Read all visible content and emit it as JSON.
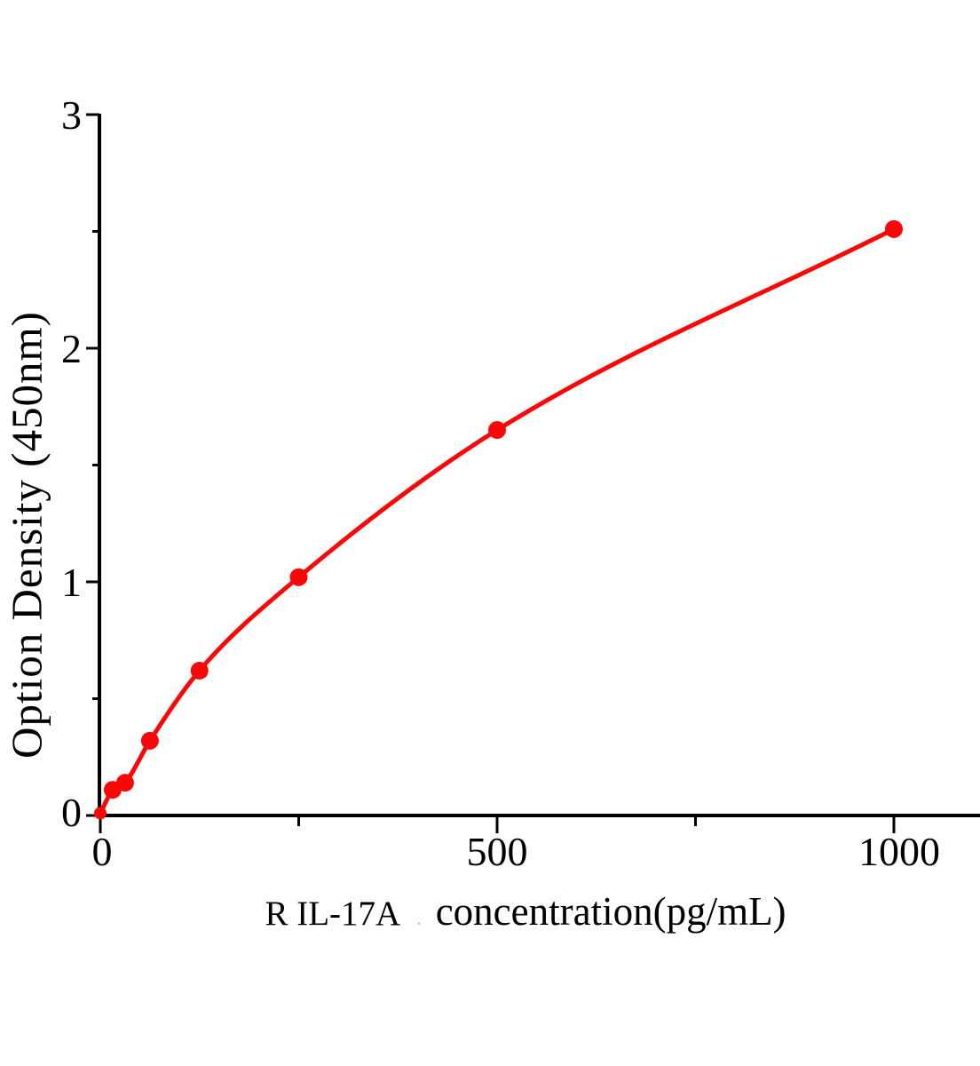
{
  "figure": {
    "background": "#ffffff"
  },
  "chart_data": {
    "type": "line",
    "title": "",
    "xlabel_prefix": "R IL-17A",
    "xlabel_separator": ".",
    "xlabel_main": "concentration",
    "xlabel_unit": "（pg/mL）",
    "ylabel": "Option Density（450nm）",
    "x": [
      0,
      15.6,
      31.25,
      62.5,
      125,
      250,
      500,
      1000
    ],
    "y": [
      0.01,
      0.11,
      0.14,
      0.32,
      0.62,
      1.02,
      1.65,
      2.51
    ],
    "xlim": [
      0,
      1110
    ],
    "ylim": [
      0,
      3
    ],
    "x_major_ticks": [
      0,
      500,
      1000
    ],
    "x_tick_labels": [
      "0",
      "500",
      "1000"
    ],
    "x_minor_ticks": [
      250,
      750
    ],
    "y_major_ticks": [
      3,
      2,
      1,
      0
    ],
    "y_tick_labels": [
      "3",
      "2",
      "1",
      "0"
    ],
    "y_minor_ticks": [
      2.5,
      1.5,
      0.5
    ],
    "grid": false,
    "legend": null,
    "series_name": "R IL-17A",
    "series_color": "#f80808",
    "marker": "circle",
    "axis_color": "#000000"
  }
}
